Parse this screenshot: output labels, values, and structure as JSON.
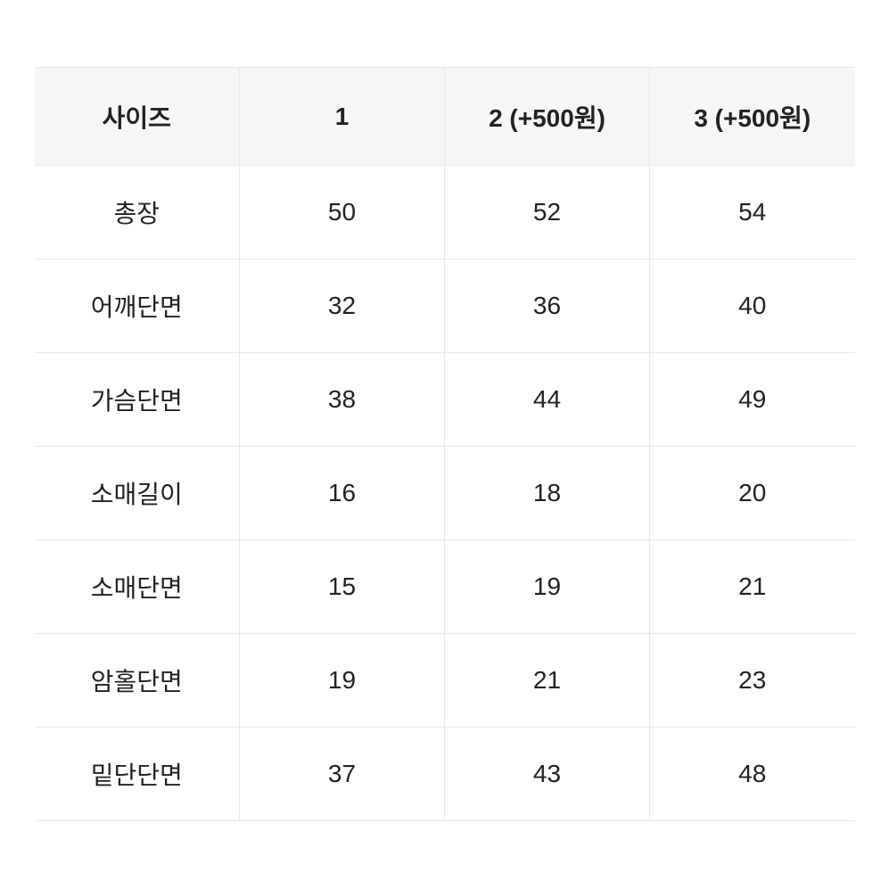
{
  "size_table": {
    "type": "table",
    "columns": [
      "사이즈",
      "1",
      "2 (+500원)",
      "3 (+500원)"
    ],
    "rows": [
      [
        "총장",
        "50",
        "52",
        "54"
      ],
      [
        "어깨단면",
        "32",
        "36",
        "40"
      ],
      [
        "가슴단면",
        "38",
        "44",
        "49"
      ],
      [
        "소매길이",
        "16",
        "18",
        "20"
      ],
      [
        "소매단면",
        "15",
        "19",
        "21"
      ],
      [
        "암홀단면",
        "19",
        "21",
        "23"
      ],
      [
        "밑단단면",
        "37",
        "43",
        "48"
      ]
    ],
    "header_bg_color": "#f6f6f6",
    "cell_bg_color": "#ffffff",
    "border_color": "#e8e8e8",
    "text_color": "#222222",
    "header_fontsize": 28,
    "cell_fontsize": 28,
    "header_fontweight": 700,
    "cell_fontweight": 400
  }
}
